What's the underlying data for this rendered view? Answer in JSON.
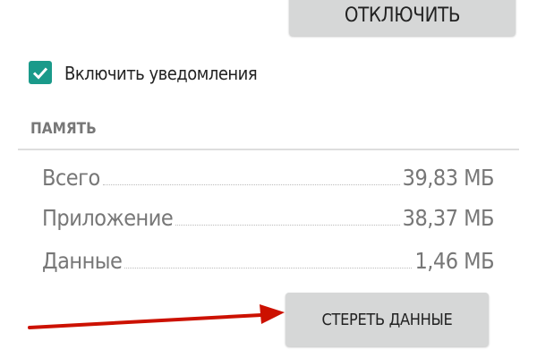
{
  "top_button": "ОТКЛЮЧИТЬ",
  "notifications": {
    "label": "Включить уведомления",
    "checked": true,
    "color": "#1a9a8a"
  },
  "storage": {
    "header": "ПАМЯТЬ",
    "rows": [
      {
        "label": "Всего",
        "value": "39,83 МБ"
      },
      {
        "label": "Приложение",
        "value": "38,37 МБ"
      },
      {
        "label": "Данные",
        "value": "1,46 МБ"
      }
    ]
  },
  "clear_button": "СТЕРЕТЬ ДАННЫЕ",
  "annotation": {
    "arrow_color": "#cc1100"
  }
}
